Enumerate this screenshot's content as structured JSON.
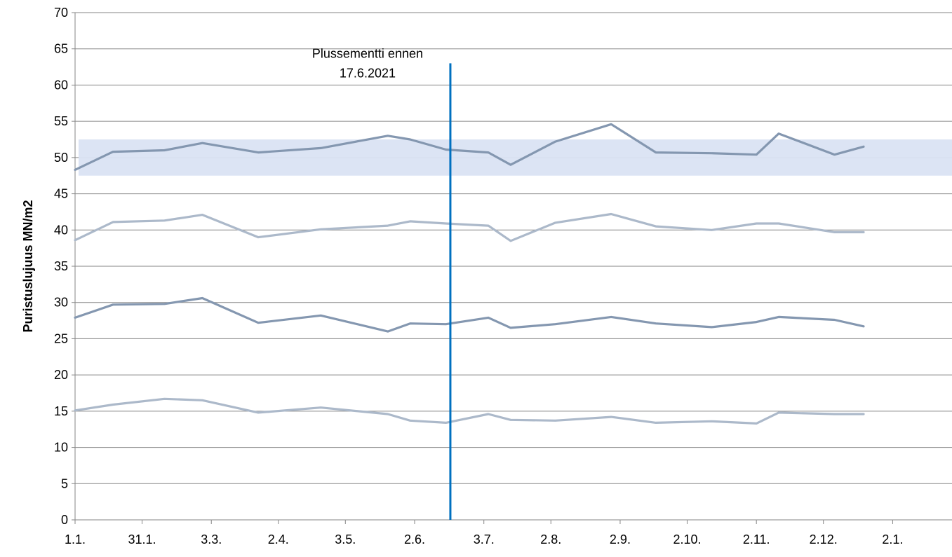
{
  "chart_data": {
    "type": "line",
    "title": "",
    "xlabel": "",
    "ylabel": "Puristuslujuus  MN/m2",
    "ylim": [
      0,
      70
    ],
    "yticks": [
      0,
      5,
      10,
      15,
      20,
      25,
      30,
      35,
      40,
      45,
      50,
      55,
      60,
      65,
      70
    ],
    "x_tick_days": [
      0,
      30,
      61,
      91,
      121,
      152,
      183,
      213,
      244,
      274,
      305,
      335,
      366
    ],
    "x_tick_labels": [
      "1.1.",
      "31.1.",
      "3.3.",
      "2.4.",
      "3.5.",
      "2.6.",
      "3.7.",
      "2.8.",
      "2.9.",
      "2.10.",
      "2.11.",
      "2.12.",
      "2.1."
    ],
    "xlim_days": [
      0,
      395
    ],
    "grid": "horizontal",
    "target_band": {
      "ymin": 47.5,
      "ymax": 52.5,
      "color": "#dae3f3"
    },
    "annotation": {
      "lines": [
        "Plussementti ennen",
        "17.6.2021"
      ],
      "x_day": 168,
      "ymin": 0,
      "ymax": 63,
      "color": "#0070c0"
    },
    "series": [
      {
        "color": "#8497b0",
        "x": [
          0,
          17,
          40,
          57,
          82,
          110,
          140,
          150,
          166,
          185,
          195,
          215,
          240,
          260,
          285,
          305,
          315,
          340,
          353
        ],
        "values": [
          48.3,
          50.8,
          51.0,
          52.0,
          50.7,
          51.3,
          53.0,
          52.5,
          51.1,
          50.7,
          49.0,
          52.2,
          54.6,
          50.7,
          50.6,
          50.4,
          53.3,
          50.4,
          51.5
        ]
      },
      {
        "color": "#acb9ca",
        "x": [
          0,
          17,
          40,
          57,
          82,
          110,
          140,
          150,
          166,
          185,
          195,
          215,
          240,
          260,
          285,
          305,
          315,
          340,
          353
        ],
        "values": [
          38.6,
          41.1,
          41.3,
          42.1,
          39.0,
          40.1,
          40.6,
          41.2,
          40.9,
          40.6,
          38.5,
          41.0,
          42.2,
          40.5,
          40.0,
          40.9,
          40.9,
          39.7,
          39.7
        ]
      },
      {
        "color": "#8497b0",
        "x": [
          0,
          17,
          40,
          57,
          82,
          110,
          140,
          150,
          166,
          185,
          195,
          215,
          240,
          260,
          285,
          305,
          315,
          340,
          353
        ],
        "values": [
          27.9,
          29.7,
          29.8,
          30.6,
          27.2,
          28.2,
          26.0,
          27.1,
          27.0,
          27.9,
          26.5,
          27.0,
          28.0,
          27.1,
          26.6,
          27.3,
          28.0,
          27.6,
          26.7
        ]
      },
      {
        "color": "#acb9ca",
        "x": [
          0,
          17,
          40,
          57,
          82,
          110,
          140,
          150,
          166,
          185,
          195,
          215,
          240,
          260,
          285,
          305,
          315,
          340,
          353
        ],
        "values": [
          15.1,
          15.9,
          16.7,
          16.5,
          14.8,
          15.5,
          14.6,
          13.7,
          13.4,
          14.6,
          13.8,
          13.7,
          14.2,
          13.4,
          13.6,
          13.3,
          14.8,
          14.6,
          14.6
        ]
      }
    ]
  }
}
